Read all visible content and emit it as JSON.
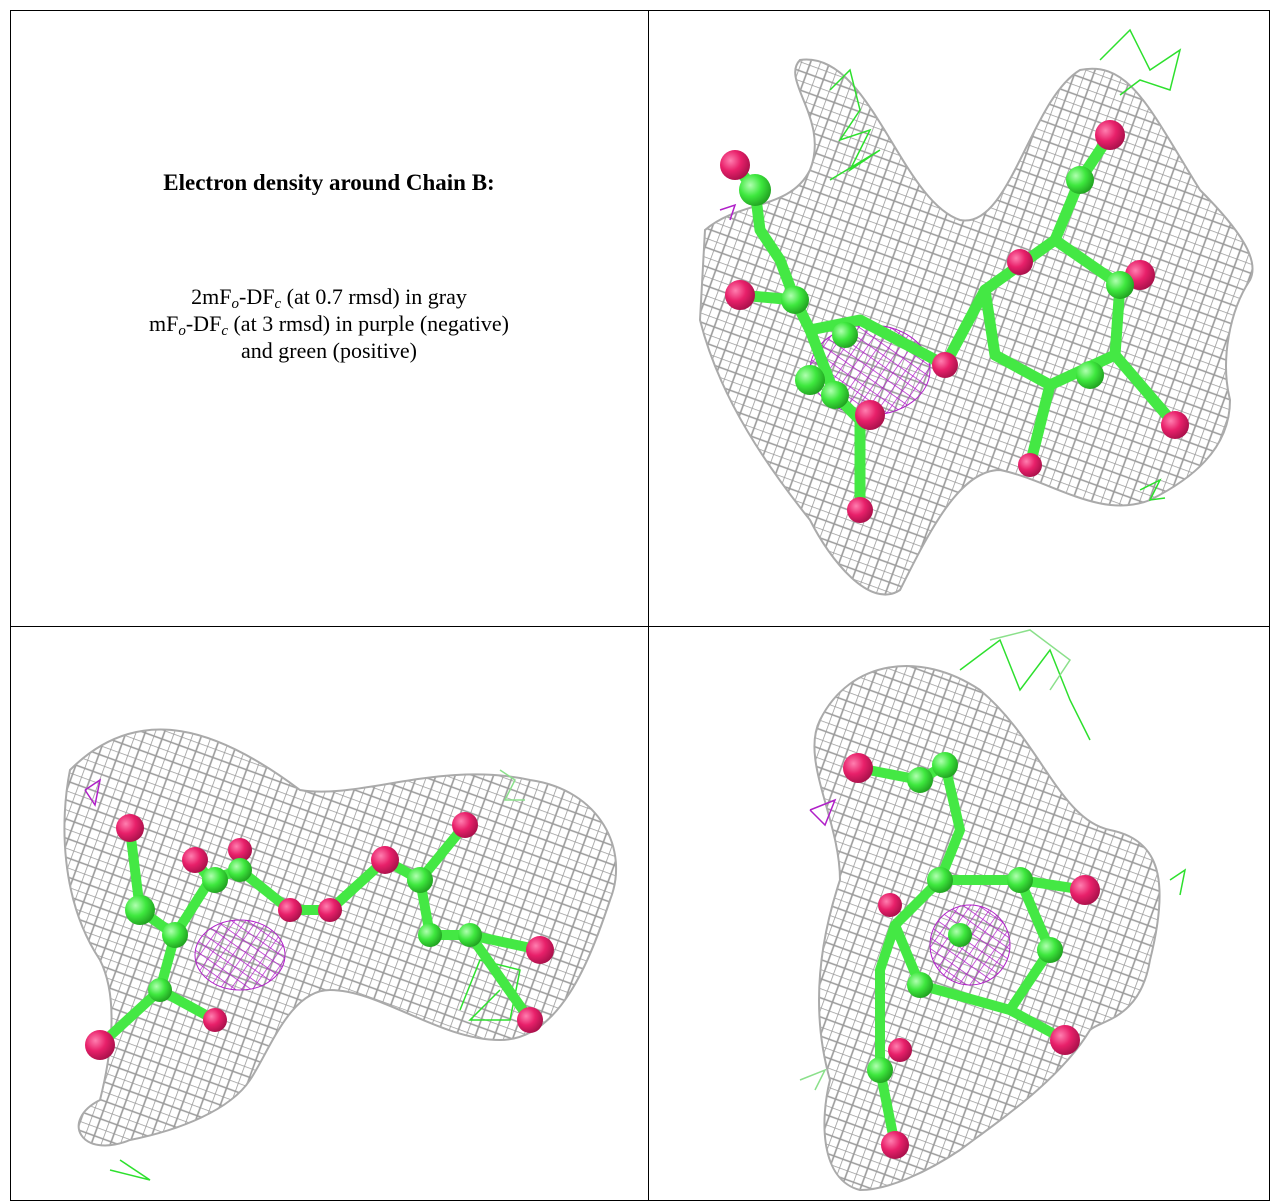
{
  "cell_text": {
    "title": "Electron density around Chain B:",
    "lines": [
      [
        "2mF",
        "o",
        "-DF",
        "c",
        " (at 0.7 rmsd) in gray"
      ],
      [
        "mF",
        "o",
        "-DF",
        "c",
        " (at 3 rmsd) in purple (negative)"
      ],
      [
        "and green (positive)"
      ]
    ]
  }
}
